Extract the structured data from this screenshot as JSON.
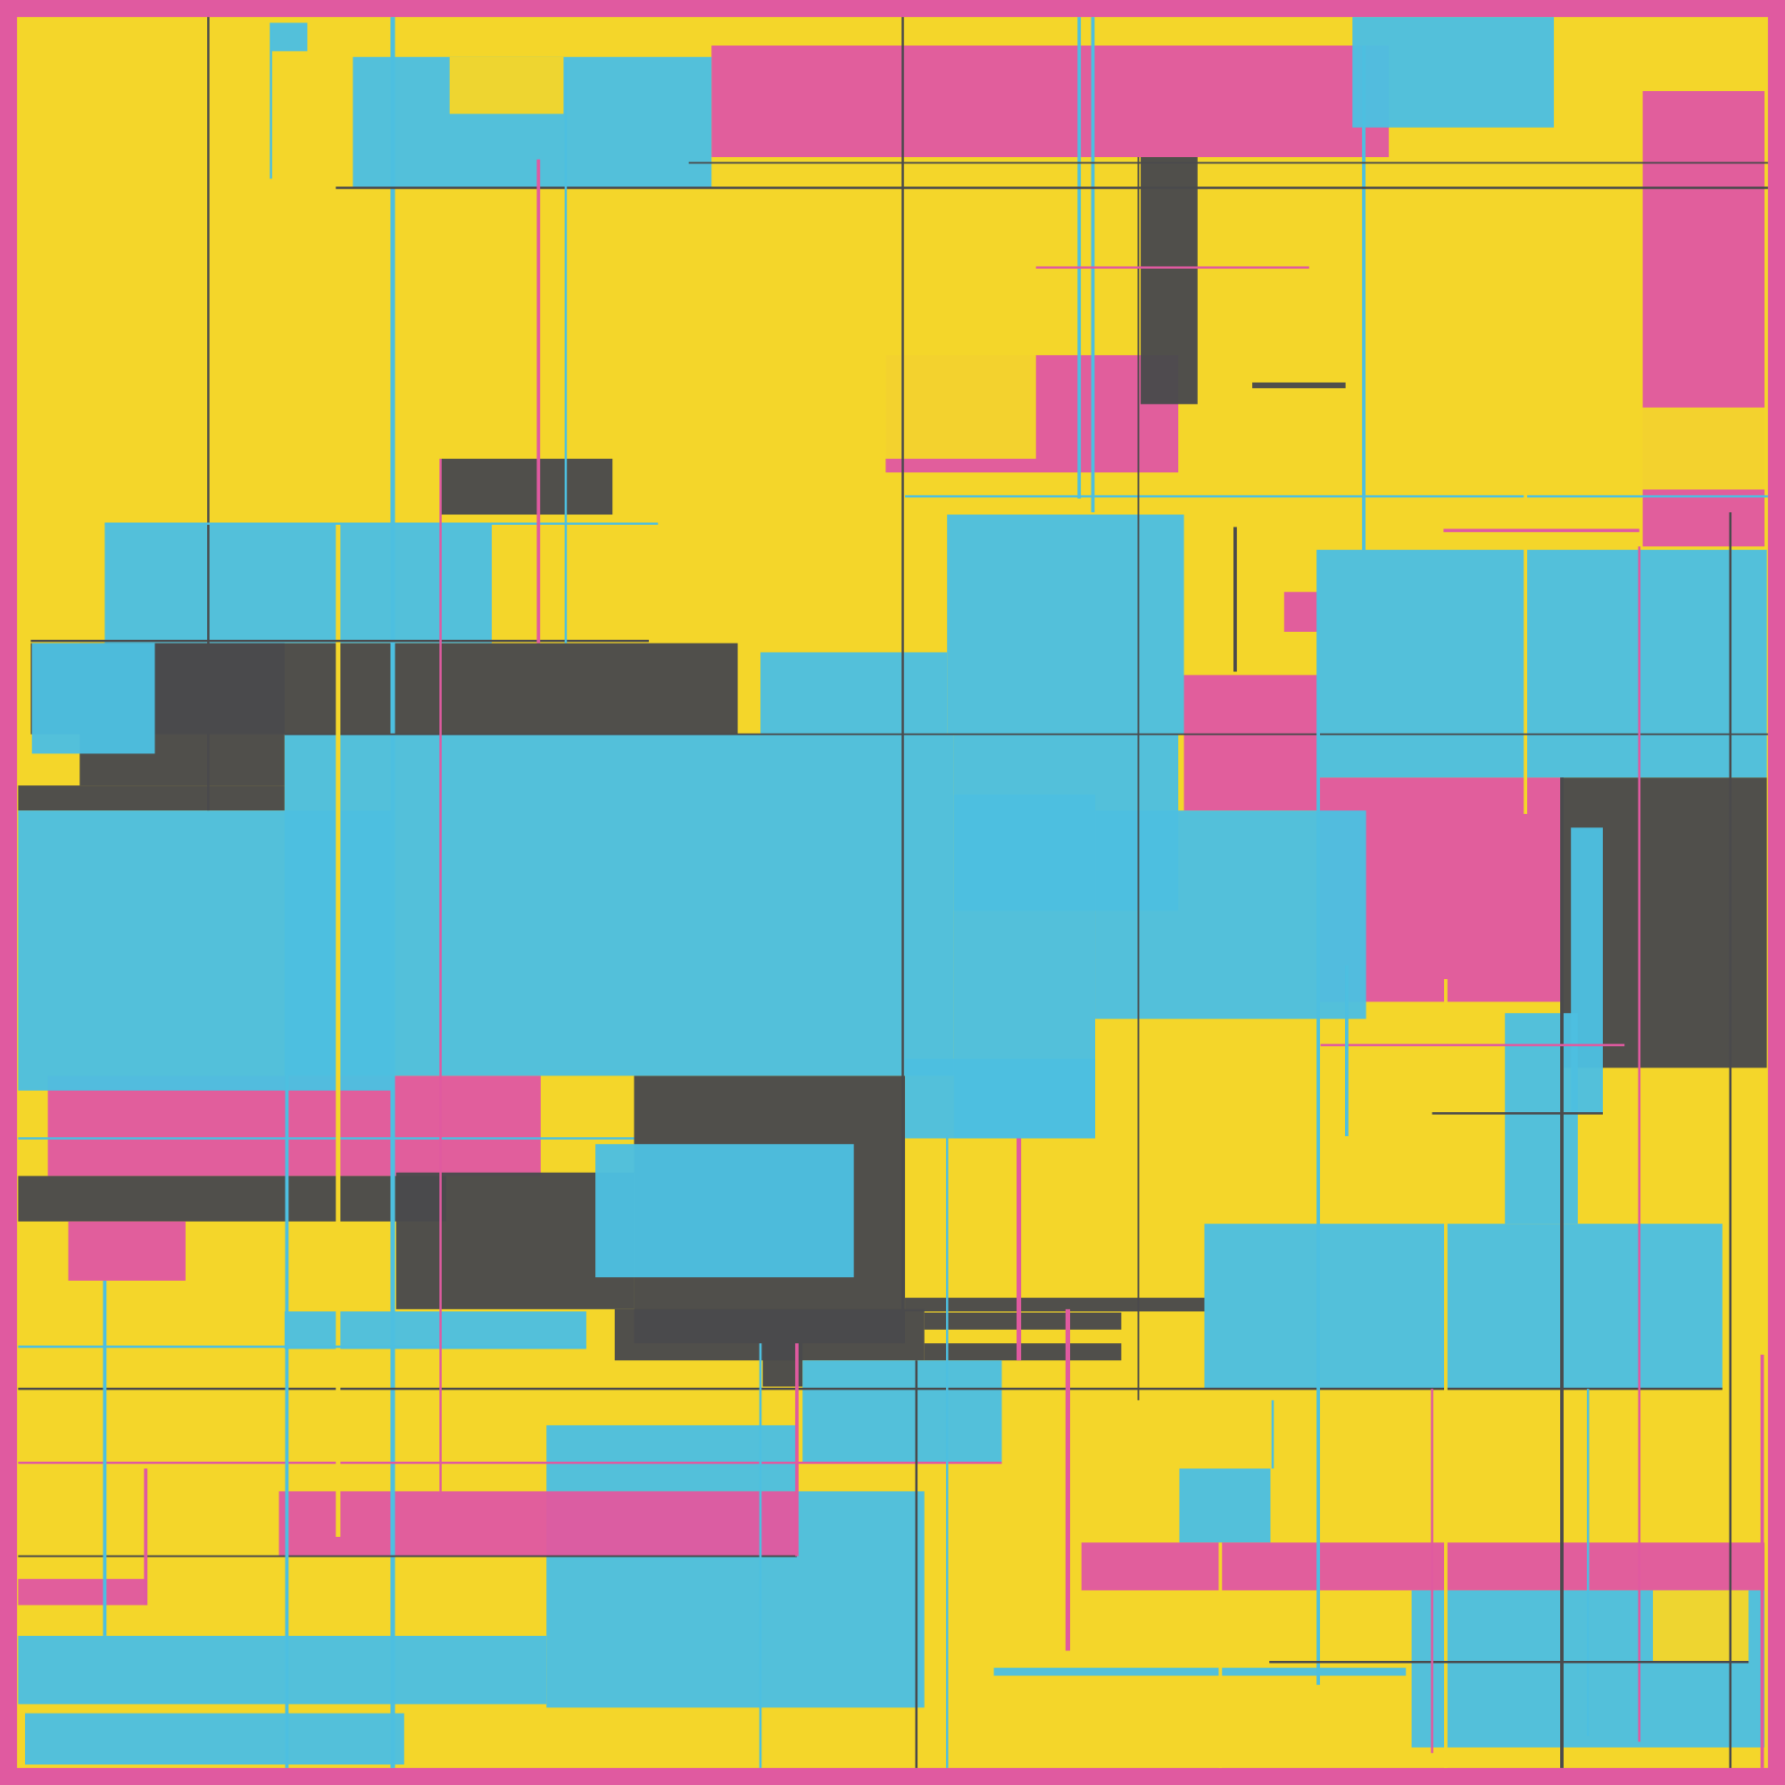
{
  "artwork": {
    "palette": {
      "border": "#E05AA0",
      "yellow": "#F4D62A",
      "blue": "#4DBFE0",
      "pink": "#E05AA0",
      "dark": "#4A4A4C"
    }
  }
}
